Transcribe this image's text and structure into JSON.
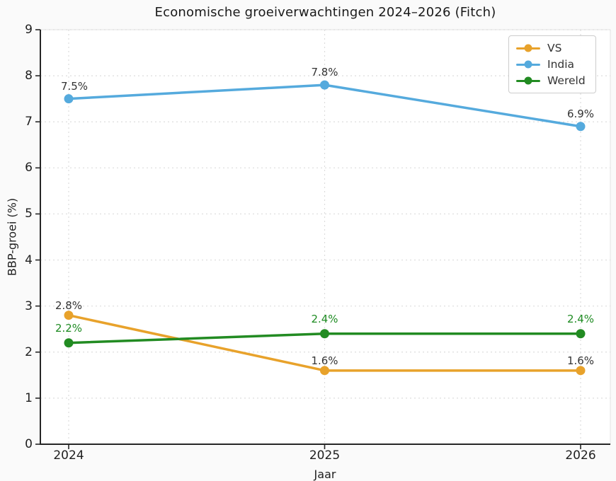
{
  "chart_data": {
    "type": "line",
    "title": "Economische groeiverwachtingen 2024–2026 (Fitch)",
    "ylabel": "BBP-groei (%)",
    "xlabel": "Jaar",
    "xlabel_note": "mostly cut off at bottom edge of image",
    "categories": [
      "2024",
      "2025",
      "2026"
    ],
    "yticks": [
      "0",
      "1",
      "2",
      "3",
      "4",
      "5",
      "6",
      "7",
      "8",
      "9"
    ],
    "ylim": [
      0,
      9
    ],
    "grid": "dashed light-gray horizontal and vertical gridlines",
    "legend_position": "upper right",
    "colors": {
      "vs": "#E8A22B",
      "india": "#55AADD",
      "wereld": "#228B22",
      "annotation_dark": "#333333",
      "annotation_green": "#1E8B22",
      "spine": "#262626",
      "gridline": "#DCDCDC"
    },
    "series": [
      {
        "name": "VS",
        "color": "#E8A22B",
        "label_color": "#333333",
        "values": [
          2.8,
          1.6,
          1.6
        ],
        "point_labels": [
          "2.8%",
          "1.6%",
          "1.6%"
        ]
      },
      {
        "name": "India",
        "color": "#55AADD",
        "label_color": "#333333",
        "values": [
          7.5,
          7.8,
          6.9
        ],
        "point_labels": [
          "7.5%",
          "7.8%",
          "6.9%"
        ]
      },
      {
        "name": "Wereld",
        "color": "#228B22",
        "label_color": "#1E8B22",
        "values": [
          2.2,
          2.4,
          2.4
        ],
        "point_labels": [
          "2.2%",
          "2.4%",
          "2.4%"
        ]
      }
    ]
  }
}
